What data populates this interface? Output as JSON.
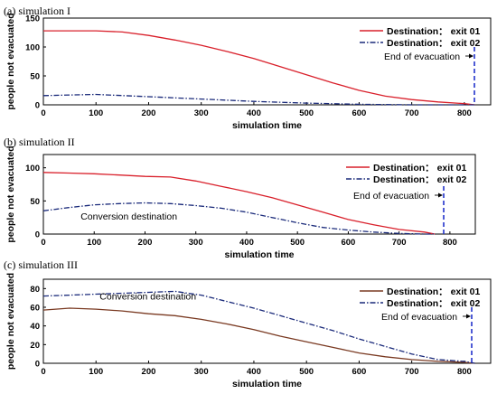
{
  "chart_data": [
    {
      "type": "line",
      "title": "(a) simulation I",
      "xlabel": "simulation time",
      "ylabel": "people not evacuated",
      "xlim": [
        0,
        850
      ],
      "ylim": [
        0,
        150
      ],
      "xticks": [
        0,
        100,
        200,
        300,
        400,
        500,
        600,
        700,
        800
      ],
      "yticks": [
        0,
        50,
        100,
        150
      ],
      "legend_position": "top-right",
      "series": [
        {
          "name": "Destination： exit 01",
          "color": "#d9202b",
          "style": "solid",
          "x": [
            0,
            100,
            150,
            200,
            250,
            300,
            350,
            400,
            450,
            500,
            550,
            600,
            650,
            700,
            750,
            800,
            820
          ],
          "y": [
            128,
            128,
            126,
            120,
            112,
            103,
            92,
            80,
            66,
            52,
            38,
            25,
            15,
            9,
            5,
            2,
            0
          ]
        },
        {
          "name": "Destination： exit 02",
          "color": "#1a2a7a",
          "style": "dashdot",
          "x": [
            0,
            100,
            200,
            300,
            400,
            500,
            600,
            700,
            800,
            820
          ],
          "y": [
            16,
            18,
            14,
            10,
            6,
            3,
            1,
            0,
            0,
            0
          ]
        }
      ],
      "annotations": [
        {
          "text": "End of evacuation",
          "x": 826,
          "y": 95
        }
      ]
    },
    {
      "type": "line",
      "title": "(b) simulation II",
      "xlabel": "simulation time",
      "ylabel": "people not evacuated",
      "xlim": [
        0,
        850
      ],
      "ylim": [
        0,
        120
      ],
      "xticks": [
        0,
        100,
        200,
        300,
        400,
        500,
        600,
        700,
        800
      ],
      "yticks": [
        0,
        50,
        100
      ],
      "legend_position": "top-right",
      "series": [
        {
          "name": "Destination： exit 01",
          "color": "#d9202b",
          "style": "solid",
          "x": [
            0,
            50,
            100,
            150,
            200,
            250,
            300,
            350,
            400,
            450,
            500,
            550,
            600,
            650,
            700,
            750,
            770
          ],
          "y": [
            93,
            92,
            91,
            89,
            87,
            86,
            80,
            72,
            64,
            55,
            44,
            33,
            22,
            14,
            7,
            3,
            0
          ]
        },
        {
          "name": "Destination： exit 02",
          "color": "#1a2a7a",
          "style": "dashdot",
          "x": [
            0,
            50,
            100,
            150,
            200,
            250,
            300,
            350,
            400,
            450,
            500,
            550,
            600,
            650,
            700,
            750,
            770
          ],
          "y": [
            35,
            40,
            44,
            46,
            47,
            46,
            43,
            39,
            33,
            25,
            17,
            10,
            6,
            3,
            1,
            0,
            0
          ]
        }
      ],
      "annotations": [
        {
          "text": "End of evacuation",
          "x": 770,
          "y": 80
        },
        {
          "text": "Conversion destination",
          "x": 180,
          "y": 22
        }
      ]
    },
    {
      "type": "line",
      "title": "(c) simulation III",
      "xlabel": "simulation time",
      "ylabel": "people not evacuated",
      "xlim": [
        0,
        850
      ],
      "ylim": [
        0,
        90
      ],
      "xticks": [
        0,
        100,
        200,
        300,
        400,
        500,
        600,
        700,
        800
      ],
      "yticks": [
        0,
        20,
        40,
        60,
        80
      ],
      "legend_position": "top-right",
      "series": [
        {
          "name": "Destination： exit 01",
          "color": "#7a3a22",
          "style": "solid",
          "x": [
            0,
            50,
            100,
            150,
            200,
            250,
            300,
            350,
            400,
            450,
            500,
            550,
            600,
            650,
            700,
            750,
            800,
            820
          ],
          "y": [
            57,
            59,
            58,
            56,
            53,
            51,
            47,
            42,
            36,
            29,
            23,
            17,
            11,
            7,
            4,
            2,
            1,
            0
          ]
        },
        {
          "name": "Destination： exit 02",
          "color": "#1a2a7a",
          "style": "dashdot",
          "x": [
            0,
            50,
            100,
            150,
            200,
            250,
            300,
            350,
            400,
            450,
            500,
            550,
            600,
            650,
            700,
            750,
            800,
            820
          ],
          "y": [
            72,
            73,
            74,
            75,
            76,
            77,
            73,
            66,
            59,
            51,
            43,
            35,
            26,
            18,
            10,
            4,
            2,
            0
          ]
        }
      ],
      "annotations": [
        {
          "text": "End of evacuation",
          "x": 822,
          "y": 56
        },
        {
          "text": "Conversion destination",
          "x": 210,
          "y": 68
        }
      ]
    }
  ]
}
